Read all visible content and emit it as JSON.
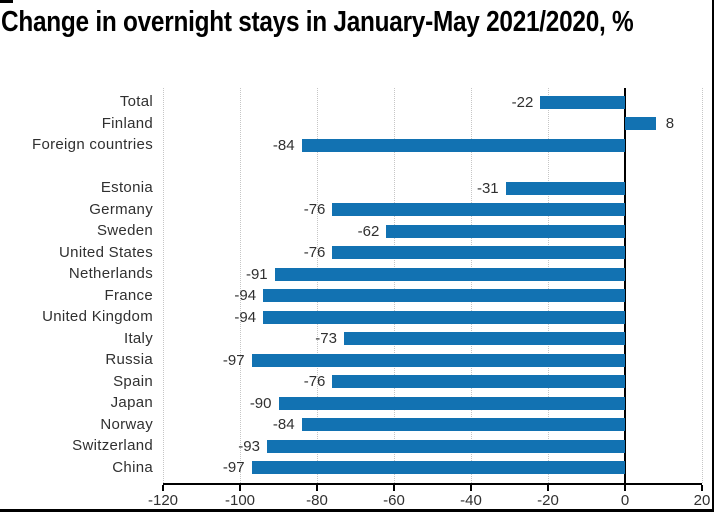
{
  "chart_data": {
    "type": "bar",
    "orientation": "horizontal",
    "title": "Change in overnight stays in January-May 2021/2020, %",
    "categories": [
      "Total",
      "Finland",
      "Foreign countries",
      "Estonia",
      "Germany",
      "Sweden",
      "United States",
      "Netherlands",
      "France",
      "United Kingdom",
      "Italy",
      "Russia",
      "Spain",
      "Japan",
      "Norway",
      "Switzerland",
      "China"
    ],
    "values": [
      -22,
      8,
      -84,
      -31,
      -76,
      -62,
      -76,
      -91,
      -94,
      -94,
      -73,
      -97,
      -76,
      -90,
      -84,
      -93,
      -97
    ],
    "group_gap_after_index": 2,
    "xlabel": "",
    "ylabel": "",
    "xlim": [
      -120,
      20
    ],
    "x_ticks": [
      -120,
      -100,
      -80,
      -60,
      -40,
      -20,
      0,
      20
    ],
    "grid": "vertical-dotted",
    "legend": "none",
    "value_label_position": "outside-bar-end",
    "bar_color": "#1272b2",
    "grid_color": "#c6c6c6",
    "zero_line_color": "#000000",
    "axis_color": "#000000",
    "text_color": "#303030",
    "title_color": "#000000"
  }
}
